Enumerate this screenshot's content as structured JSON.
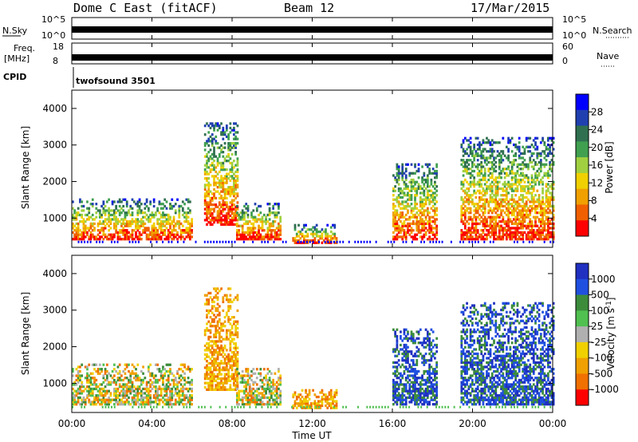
{
  "header": {
    "title": "Dome C East (fitACF)",
    "beam": "Beam 12",
    "date": "17/Mar/2015"
  },
  "panels": {
    "nsky_label": "N.Sky",
    "nsky_ticks": [
      "10^5",
      "10^0"
    ],
    "nsearch_label": "N.Search",
    "nsearch_ticks": [
      "10^5",
      "10^0"
    ],
    "freq_label_1": "Freq.",
    "freq_label_2": "[MHz]",
    "freq_ticks": [
      "18",
      "8"
    ],
    "nave_label": "Nave",
    "nave_ticks": [
      "60",
      "0"
    ],
    "cpid_label": "CPID",
    "cpid_value": "twofsound 3501"
  },
  "colors": {
    "power_scale": [
      "#0000ff",
      "#2040b0",
      "#307050",
      "#40a050",
      "#a0d040",
      "#f0d000",
      "#f0a000",
      "#f06000",
      "#ff0000"
    ],
    "velocity_scale": [
      "#2030c0",
      "#2050e0",
      "#3c8c3c",
      "#50c050",
      "#b0b0b0",
      "#f0d000",
      "#f0a000",
      "#f07000",
      "#ff0000"
    ]
  },
  "chart_data": [
    {
      "type": "heatmap",
      "title": "Power",
      "ylabel": "Slant Range [km]",
      "xlabel": "Time UT",
      "x_ticks": [
        "00:00",
        "04:00",
        "08:00",
        "12:00",
        "16:00",
        "20:00",
        "00:00"
      ],
      "y_ticks": [
        "1000",
        "2000",
        "3000",
        "4000"
      ],
      "ylim": [
        200,
        4500
      ],
      "colorbar_label": "Power [dB]",
      "colorbar_ticks": [
        "28",
        "24",
        "20",
        "16",
        "12",
        "8",
        "4"
      ],
      "echo_regions": [
        {
          "t_start": 0.0,
          "t_end": 6.0,
          "r_min": 400,
          "r_max": 1500,
          "level": "high"
        },
        {
          "t_start": 6.6,
          "t_end": 8.3,
          "r_min": 800,
          "r_max": 3600,
          "level": "medium"
        },
        {
          "t_start": 8.2,
          "t_end": 10.4,
          "r_min": 400,
          "r_max": 1400,
          "level": "high"
        },
        {
          "t_start": 11.0,
          "t_end": 13.2,
          "r_min": 300,
          "r_max": 800,
          "level": "medium"
        },
        {
          "t_start": 16.0,
          "t_end": 18.2,
          "r_min": 400,
          "r_max": 2500,
          "level": "high"
        },
        {
          "t_start": 19.4,
          "t_end": 24.0,
          "r_min": 400,
          "r_max": 3200,
          "level": "high"
        }
      ]
    },
    {
      "type": "heatmap",
      "title": "Velocity",
      "ylabel": "Slant Range [km]",
      "xlabel": "Time UT",
      "x_ticks": [
        "00:00",
        "04:00",
        "08:00",
        "12:00",
        "16:00",
        "20:00",
        "00:00"
      ],
      "y_ticks": [
        "1000",
        "2000",
        "3000",
        "4000"
      ],
      "ylim": [
        200,
        4500
      ],
      "colorbar_label": "Velocity [m s^-1]",
      "colorbar_ticks": [
        "1000",
        "500",
        "100",
        "25",
        "-25",
        "-100",
        "-500",
        "-1000"
      ],
      "echo_regions": [
        {
          "t_start": 0.0,
          "t_end": 6.0,
          "r_min": 400,
          "r_max": 1500,
          "level": "mixed"
        },
        {
          "t_start": 6.6,
          "t_end": 8.3,
          "r_min": 800,
          "r_max": 3600,
          "level": "away"
        },
        {
          "t_start": 8.2,
          "t_end": 10.4,
          "r_min": 400,
          "r_max": 1400,
          "level": "mixed"
        },
        {
          "t_start": 11.0,
          "t_end": 13.2,
          "r_min": 300,
          "r_max": 800,
          "level": "away"
        },
        {
          "t_start": 16.0,
          "t_end": 18.2,
          "r_min": 400,
          "r_max": 2500,
          "level": "toward"
        },
        {
          "t_start": 19.4,
          "t_end": 24.0,
          "r_min": 400,
          "r_max": 3200,
          "level": "toward"
        }
      ]
    }
  ]
}
